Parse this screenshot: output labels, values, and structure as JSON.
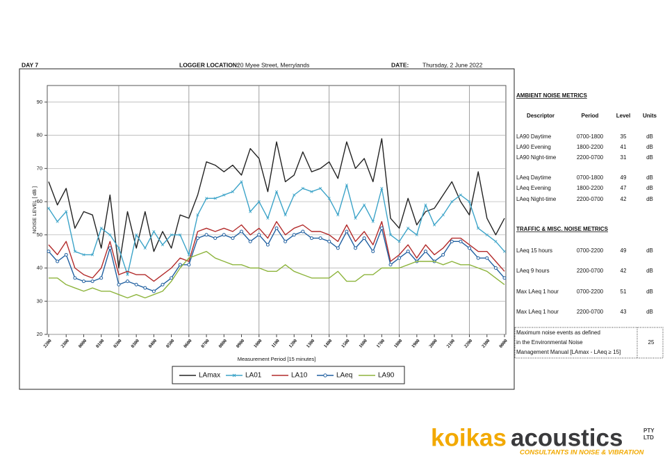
{
  "header": {
    "day": "DAY 7",
    "location_label": "LOGGER LOCATION:",
    "location": "20 Myee Street, Merrylands",
    "date_label": "DATE:",
    "date": "Thursday, 2 June 2022"
  },
  "chart_data": {
    "type": "line",
    "ylabel": "NOISE LEVEL  [ dB ]",
    "xlabel": "Measurement Period  [15 minutes]",
    "categories": [
      "2200",
      null,
      "2300",
      null,
      "0000",
      null,
      "0100",
      null,
      "0200",
      null,
      "0300",
      null,
      "0400",
      null,
      "0500",
      null,
      "0600",
      null,
      "0700",
      null,
      "0800",
      null,
      "0900",
      null,
      "1000",
      null,
      "1100",
      null,
      "1200",
      null,
      "1300",
      null,
      "1400",
      null,
      "1500",
      null,
      "1600",
      null,
      "1700",
      null,
      "1800",
      null,
      "1900",
      null,
      "2000",
      null,
      "2100",
      null,
      "2200",
      null,
      "2300",
      null,
      "0000"
    ],
    "ylim": [
      20,
      95
    ],
    "yticks": [
      20,
      30,
      40,
      50,
      60,
      70,
      80,
      90
    ],
    "grid": true,
    "series": [
      {
        "name": "LAmax",
        "color": "#222222",
        "marker": "none",
        "values": [
          66,
          59,
          64,
          52,
          57,
          56,
          46,
          62,
          40,
          57,
          46,
          57,
          45,
          51,
          46,
          56,
          55,
          62,
          72,
          71,
          69,
          71,
          68,
          76,
          73,
          63,
          78,
          66,
          68,
          75,
          69,
          70,
          72,
          67,
          78,
          70,
          73,
          66,
          79,
          55,
          52,
          61,
          53,
          57,
          58,
          62,
          66,
          60,
          56,
          69,
          55,
          50,
          55
        ]
      },
      {
        "name": "LA01",
        "color": "#3ba3c8",
        "marker": "x",
        "values": [
          58,
          54,
          57,
          45,
          44,
          44,
          52,
          50,
          46,
          38,
          50,
          46,
          51,
          47,
          50,
          50,
          44,
          56,
          61,
          61,
          62,
          63,
          66,
          57,
          60,
          55,
          63,
          56,
          62,
          64,
          63,
          64,
          61,
          56,
          65,
          55,
          59,
          54,
          64,
          50,
          48,
          52,
          50,
          59,
          53,
          56,
          60,
          62,
          60,
          52,
          50,
          48,
          45
        ]
      },
      {
        "name": "LA10",
        "color": "#b22a2a",
        "marker": "none",
        "values": [
          47,
          44,
          48,
          40,
          38,
          37,
          40,
          48,
          38,
          39,
          38,
          38,
          36,
          38,
          40,
          43,
          42,
          51,
          52,
          51,
          52,
          51,
          53,
          50,
          52,
          49,
          54,
          50,
          52,
          53,
          51,
          51,
          50,
          48,
          53,
          48,
          51,
          47,
          54,
          42,
          44,
          47,
          43,
          47,
          44,
          46,
          49,
          49,
          47,
          45,
          45,
          42,
          39
        ]
      },
      {
        "name": "LAeq",
        "color": "#1f5fa0",
        "marker": "circle",
        "values": [
          45,
          42,
          44,
          37,
          36,
          36,
          37,
          46,
          35,
          36,
          35,
          34,
          33,
          35,
          37,
          41,
          41,
          49,
          50,
          49,
          50,
          49,
          51,
          48,
          50,
          47,
          52,
          48,
          50,
          51,
          49,
          49,
          48,
          46,
          51,
          46,
          49,
          45,
          52,
          41,
          43,
          45,
          42,
          45,
          42,
          44,
          48,
          48,
          46,
          43,
          43,
          40,
          37
        ]
      },
      {
        "name": "LA90",
        "color": "#8db43c",
        "marker": "none",
        "values": [
          37,
          37,
          35,
          34,
          33,
          34,
          33,
          33,
          32,
          31,
          32,
          31,
          32,
          33,
          36,
          40,
          43,
          44,
          45,
          43,
          42,
          41,
          41,
          40,
          40,
          39,
          39,
          41,
          39,
          38,
          37,
          37,
          37,
          39,
          36,
          36,
          38,
          38,
          40,
          40,
          40,
          41,
          42,
          42,
          42,
          41,
          42,
          41,
          41,
          40,
          39,
          37,
          35
        ]
      }
    ]
  },
  "ambient": {
    "title": "AMBIENT NOISE METRICS",
    "columns": [
      "Descriptor",
      "Period",
      "Level",
      "Units"
    ],
    "rows": [
      [
        "LA90 Daytime",
        "0700-1800",
        35,
        "dB"
      ],
      [
        "LA90 Evening",
        "1800-2200",
        41,
        "dB"
      ],
      [
        "LA90 Night-time",
        "2200-0700",
        31,
        "dB"
      ],
      [
        "LAeq Daytime",
        "0700-1800",
        49,
        "dB"
      ],
      [
        "LAeq Evening",
        "1800-2200",
        47,
        "dB"
      ],
      [
        "LAeq Night-time",
        "2200-0700",
        42,
        "dB"
      ]
    ]
  },
  "traffic": {
    "title": "TRAFFIC & MISC. NOISE METRICS",
    "rows": [
      [
        "LAeq 15 hours",
        "0700-2200",
        49,
        "dB"
      ],
      [
        "LAeq 9 hours",
        "2200-0700",
        42,
        "dB"
      ],
      [
        "Max LAeq 1 hour",
        "0700-2200",
        51,
        "dB"
      ],
      [
        "Max LAeq 1 hour",
        "2200-0700",
        43,
        "dB"
      ]
    ]
  },
  "events": {
    "lines": [
      "Maximum noise events as defined",
      "in the Environmental Noise",
      "Management Manual [LAmax - LAeq ≥ 15]"
    ],
    "value": 25
  },
  "logo": {
    "brand1": "koikas",
    "brand2": "acoustics",
    "suffix1": "PTY",
    "suffix2": "LTD",
    "tagline": "CONSULTANTS IN NOISE & VIBRATION"
  }
}
